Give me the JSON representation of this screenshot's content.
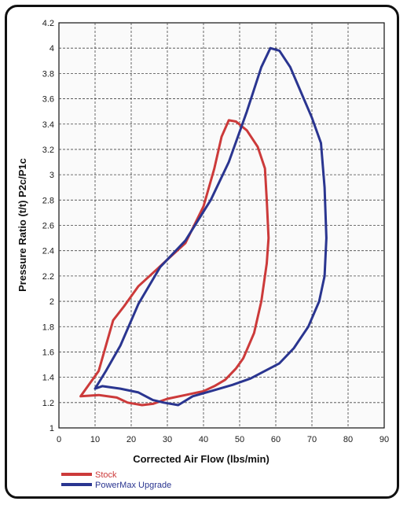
{
  "chart_data": {
    "type": "line",
    "xlabel": "Corrected Air Flow (lbs/min)",
    "ylabel": "Pressure Ratio (t/t) P2c/P1c",
    "xlim": [
      0,
      90
    ],
    "ylim": [
      1,
      4.2
    ],
    "xticks": [
      0,
      10,
      20,
      30,
      40,
      50,
      60,
      70,
      80,
      90
    ],
    "yticks": [
      1,
      1.2,
      1.4,
      1.6,
      1.8,
      2,
      2.2,
      2.4,
      2.6,
      2.8,
      3,
      3.2,
      3.4,
      3.6,
      3.8,
      4,
      4.2
    ],
    "grid": "dashed",
    "legend_position": "bottom-left",
    "series": [
      {
        "name": "Stock",
        "color": "#cc3a3a",
        "x": [
          6,
          11,
          15,
          18,
          22,
          27,
          30,
          35,
          40,
          43,
          45,
          47,
          49,
          52,
          55,
          57,
          57.5,
          58,
          57.5,
          56,
          54,
          51,
          49,
          46,
          43,
          40,
          35,
          30,
          26,
          23,
          19,
          16,
          11,
          6
        ],
        "y": [
          1.25,
          1.45,
          1.85,
          1.96,
          2.12,
          2.25,
          2.33,
          2.46,
          2.75,
          3.05,
          3.3,
          3.43,
          3.42,
          3.35,
          3.22,
          3.05,
          2.8,
          2.5,
          2.3,
          2.0,
          1.75,
          1.55,
          1.47,
          1.38,
          1.33,
          1.29,
          1.26,
          1.23,
          1.19,
          1.18,
          1.2,
          1.24,
          1.26,
          1.25
        ]
      },
      {
        "name": "PowerMax Upgrade",
        "color": "#2a3590",
        "x": [
          10,
          13,
          17,
          22,
          28,
          35,
          42,
          47,
          52,
          56,
          58.5,
          61,
          64,
          67,
          70,
          72.5,
          73.5,
          74,
          73.5,
          72,
          69,
          65,
          61,
          57,
          53,
          48,
          42,
          37,
          33,
          29,
          26,
          22,
          17,
          12,
          10
        ],
        "y": [
          1.31,
          1.45,
          1.65,
          1.98,
          2.27,
          2.48,
          2.8,
          3.1,
          3.5,
          3.85,
          4.0,
          3.98,
          3.85,
          3.65,
          3.45,
          3.25,
          2.9,
          2.5,
          2.2,
          2.0,
          1.8,
          1.63,
          1.51,
          1.45,
          1.39,
          1.34,
          1.29,
          1.25,
          1.18,
          1.2,
          1.22,
          1.28,
          1.31,
          1.33,
          1.31
        ]
      }
    ]
  }
}
